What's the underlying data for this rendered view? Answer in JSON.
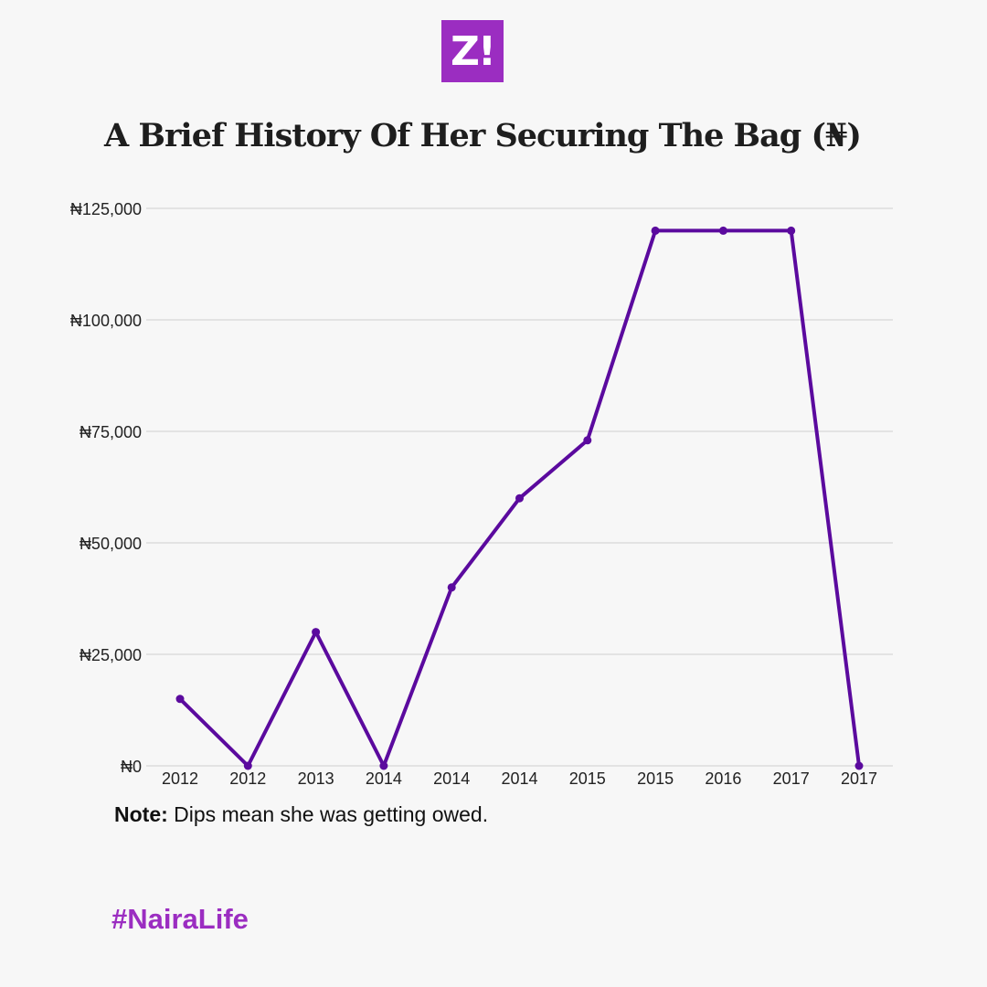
{
  "logo_text": "Z!",
  "chart_data": {
    "type": "line",
    "title": "A Brief History Of Her Securing The Bag (₦)",
    "categories": [
      "2012",
      "2012",
      "2013",
      "2014",
      "2014",
      "2014",
      "2015",
      "2015",
      "2016",
      "2017",
      "2017"
    ],
    "values": [
      15000,
      0,
      30000,
      0,
      40000,
      60000,
      73000,
      120000,
      120000,
      120000,
      0
    ],
    "ylim": [
      0,
      125000
    ],
    "yticks": [
      0,
      25000,
      50000,
      75000,
      100000,
      125000
    ],
    "ytick_labels": [
      "₦0",
      "₦25,000",
      "₦50,000",
      "₦75,000",
      "₦100,000",
      "₦125,000"
    ],
    "xlabel": "",
    "ylabel": "",
    "grid": true,
    "line_color": "#5b0a9e"
  },
  "note_label": "Note:",
  "note_text": " Dips mean she was getting owed.",
  "hashtag": "#NairaLife"
}
